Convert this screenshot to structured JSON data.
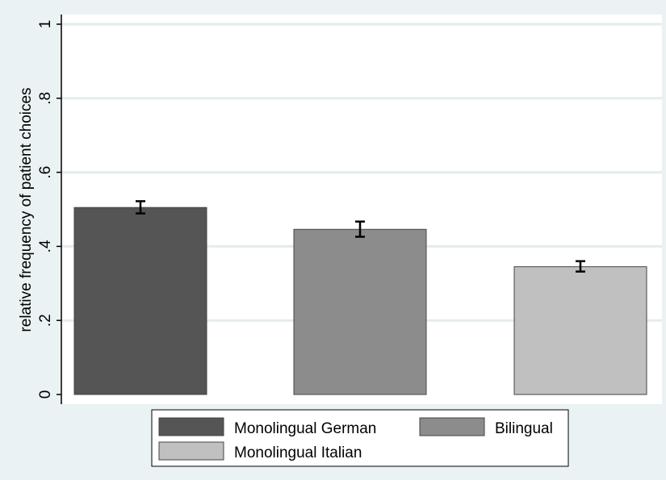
{
  "chart_data": {
    "type": "bar",
    "title": "",
    "xlabel": "",
    "ylabel": "relative frequency of patient choices",
    "ylim": [
      0,
      1
    ],
    "yticks": [
      0,
      0.2,
      0.4,
      0.6,
      0.8,
      1
    ],
    "ytick_labels": [
      "0",
      ".2",
      ".4",
      ".6",
      ".8",
      "1"
    ],
    "grid": true,
    "legend_position": "bottom",
    "series": [
      {
        "name": "Monolingual German",
        "value": 0.505,
        "ci": [
          0.489,
          0.522
        ],
        "color": "#555555"
      },
      {
        "name": "Bilingual",
        "value": 0.446,
        "ci": [
          0.426,
          0.467
        ],
        "color": "#8c8c8c"
      },
      {
        "name": "Monolingual Italian",
        "value": 0.345,
        "ci": [
          0.332,
          0.36
        ],
        "color": "#c0c0c0"
      }
    ]
  }
}
